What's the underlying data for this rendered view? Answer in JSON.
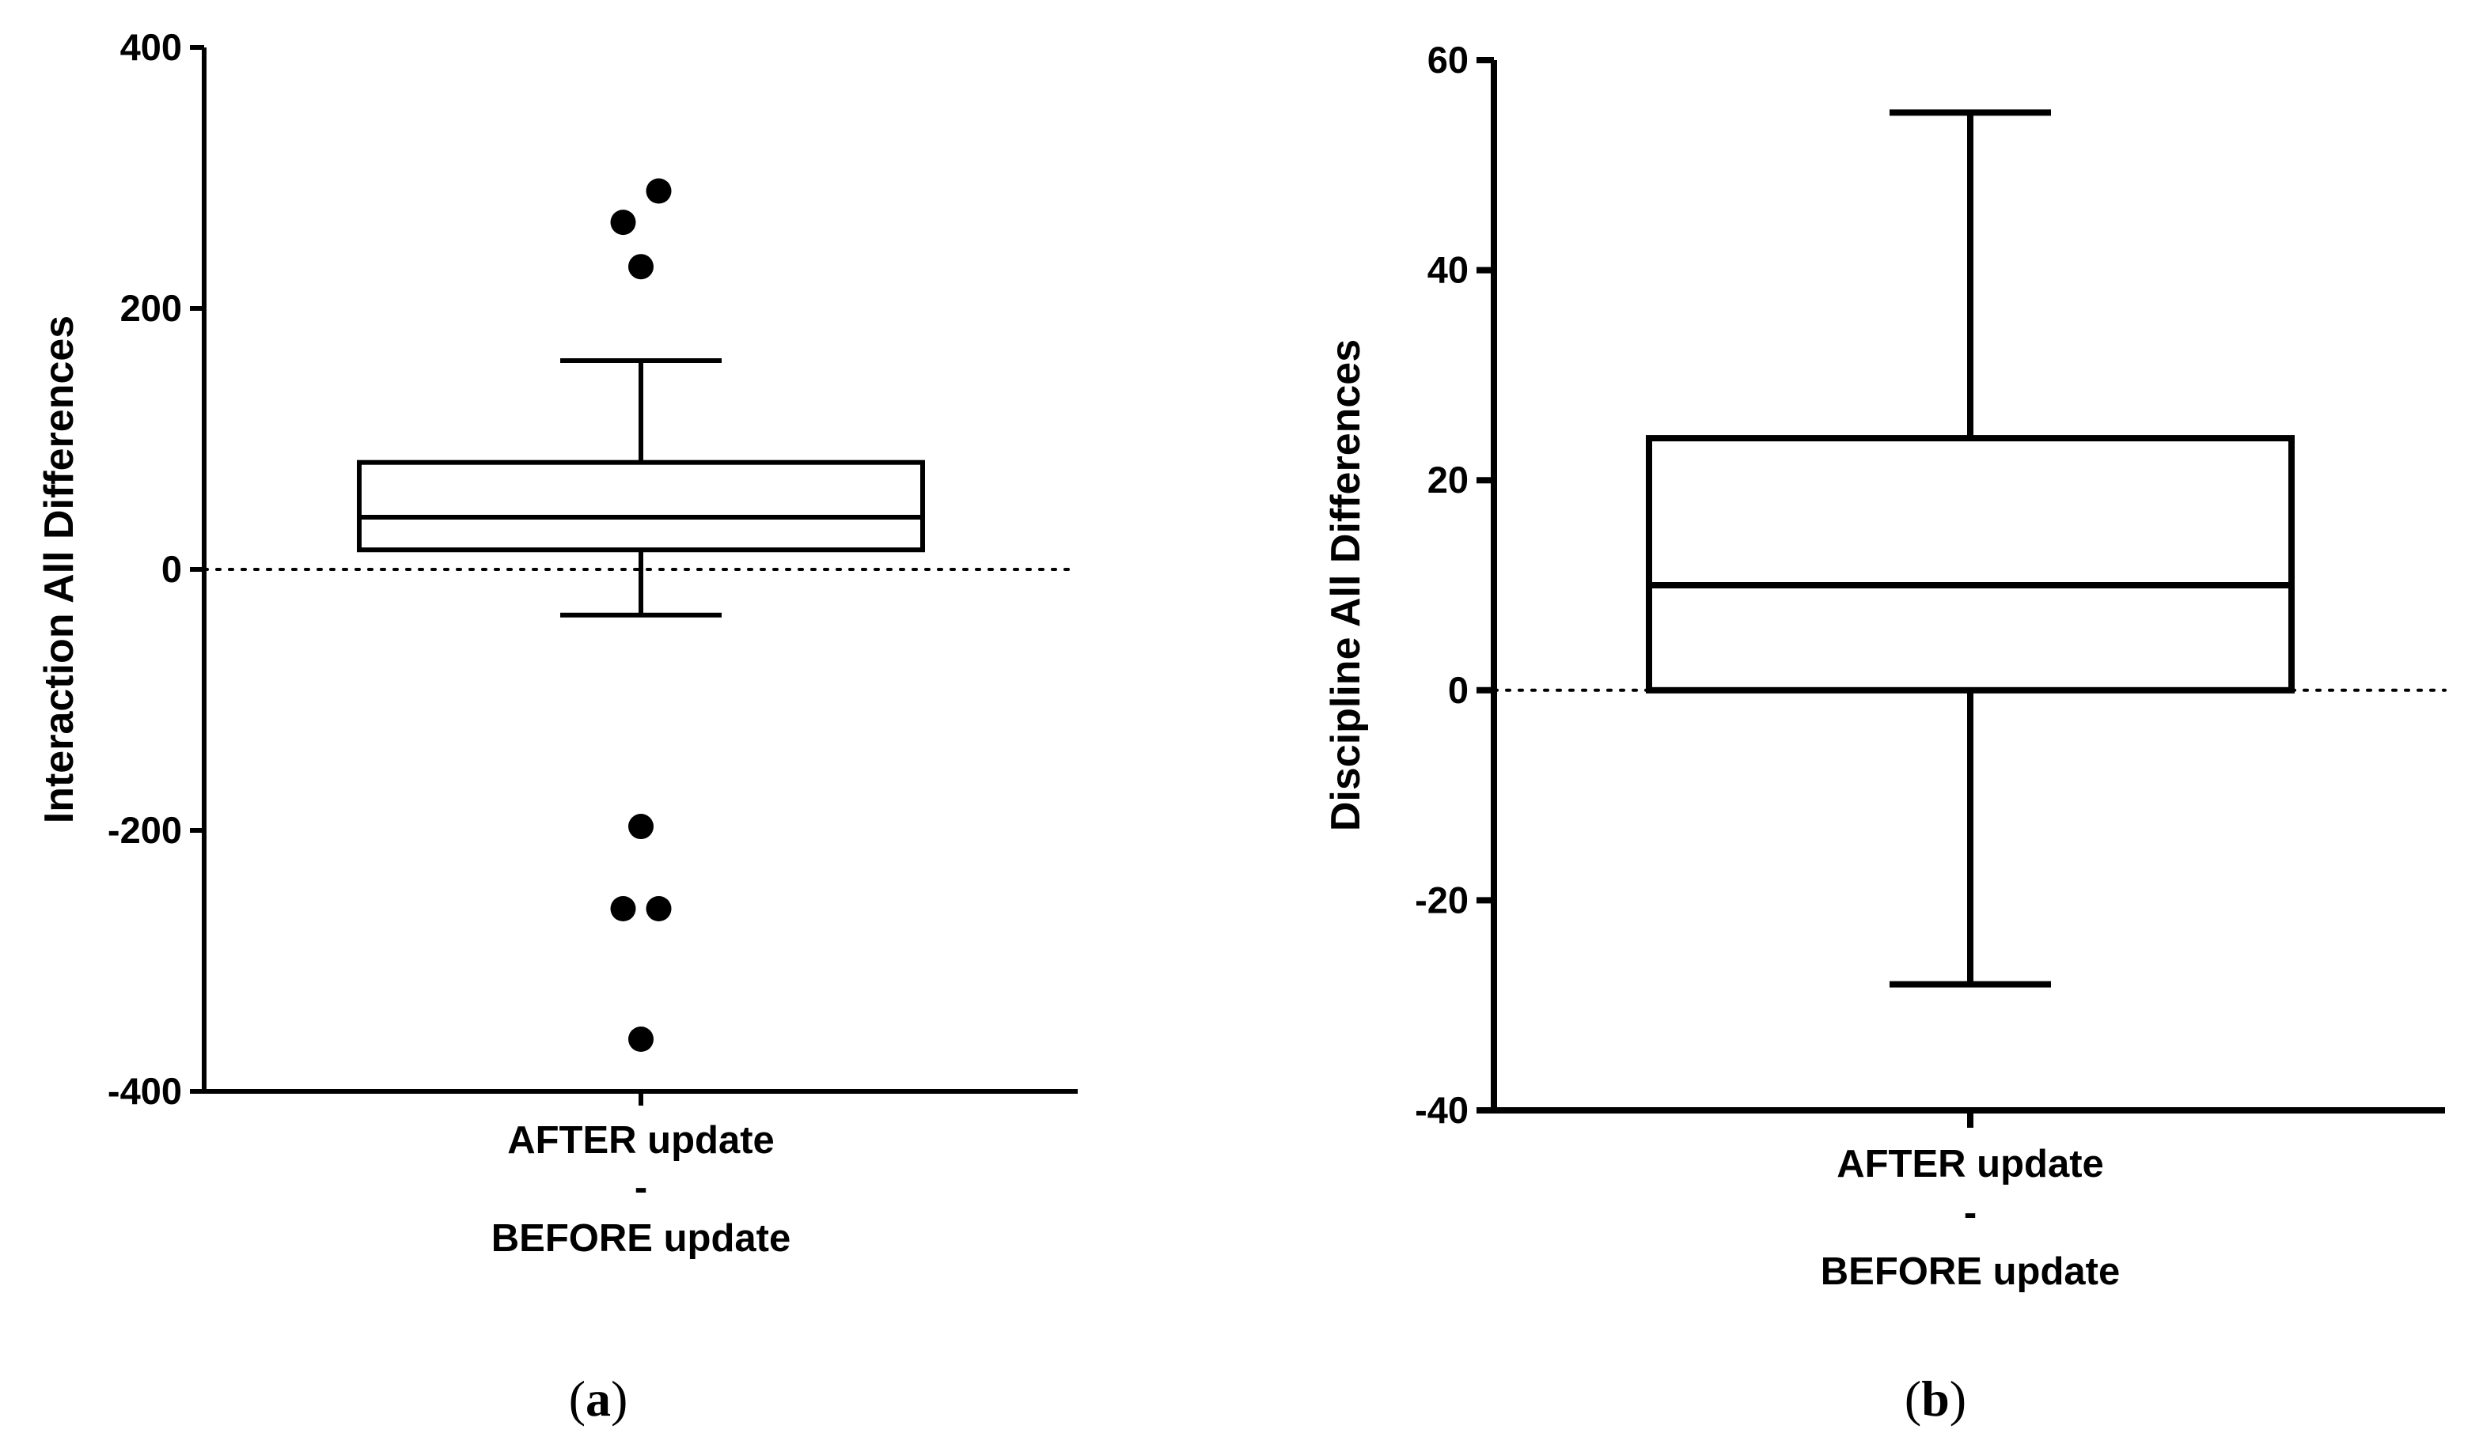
{
  "chart_data": [
    {
      "type": "box",
      "panel_label": "a",
      "ylabel": "Interaction All Differences",
      "ylim": [
        -400,
        400
      ],
      "yticks": [
        400,
        200,
        0,
        -200,
        -400
      ],
      "category_lines": [
        "AFTER update",
        "-",
        "BEFORE update"
      ],
      "reference_line": 0,
      "box": {
        "whisker_low": -35,
        "q1": 15,
        "median": 40,
        "q3": 82,
        "whisker_high": 160
      },
      "outliers": [
        {
          "x_offset": -0.06,
          "value": 266
        },
        {
          "x_offset": 0.06,
          "value": 290
        },
        {
          "x_offset": 0.0,
          "value": 232
        },
        {
          "x_offset": 0.0,
          "value": -197
        },
        {
          "x_offset": -0.06,
          "value": -260
        },
        {
          "x_offset": 0.06,
          "value": -260
        },
        {
          "x_offset": 0.0,
          "value": -360
        }
      ]
    },
    {
      "type": "box",
      "panel_label": "b",
      "ylabel": "Discipline All Differences",
      "ylim": [
        -40,
        60
      ],
      "yticks": [
        60,
        40,
        20,
        0,
        -20,
        -40
      ],
      "category_lines": [
        "AFTER update",
        "-",
        "BEFORE update"
      ],
      "reference_line": 0,
      "box": {
        "whisker_low": -28,
        "q1": 0,
        "median": 10,
        "q3": 24,
        "whisker_high": 55
      },
      "outliers": []
    }
  ]
}
